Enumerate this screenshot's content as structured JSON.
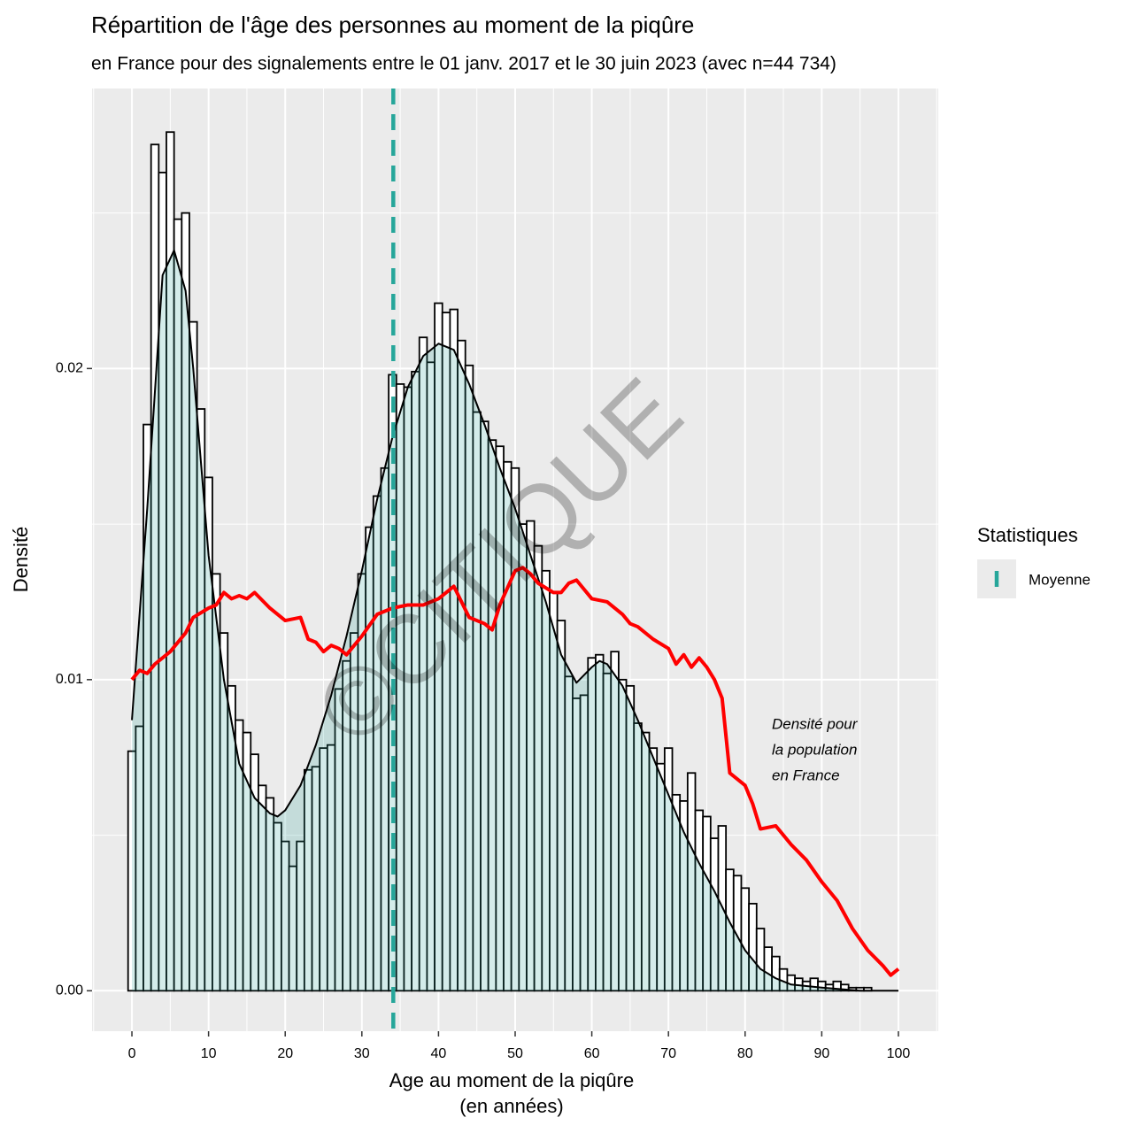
{
  "chart_data": {
    "type": "histogram",
    "title": "Répartition de l'âge des personnes au moment de la piqûre",
    "subtitle": "en France pour des signalements entre le 01 janv. 2017 et le 30 juin 2023 (avec n=44 734)",
    "x_label": [
      "Age au moment de la piqûre",
      "(en années)"
    ],
    "y_label": "Densité",
    "watermark": "©CITIQUE",
    "annotation": {
      "lines": [
        "Densité pour",
        "la population",
        "en France"
      ],
      "color": "#ff0000"
    },
    "legend": {
      "title": "Statistiques",
      "position": "right"
    },
    "bins": [
      -0.5,
      0.5,
      1.5,
      2.5,
      3.5,
      4.5,
      5.5,
      6.5,
      7.5,
      8.5,
      9.5,
      10.5,
      11.5,
      12.5,
      13.5,
      14.5,
      15.5,
      16.5,
      17.5,
      18.5,
      19.5,
      20.5,
      21.5,
      22.5,
      23.5,
      24.5,
      25.5,
      26.5,
      27.5,
      28.5,
      29.5,
      30.5,
      31.5,
      32.5,
      33.5,
      34.5,
      35.5,
      36.5,
      37.5,
      38.5,
      39.5,
      40.5,
      41.5,
      42.5,
      43.5,
      44.5,
      45.5,
      46.5,
      47.5,
      48.5,
      49.5,
      50.5,
      51.5,
      52.5,
      53.5,
      54.5,
      55.5,
      56.5,
      57.5,
      58.5,
      59.5,
      60.5,
      61.5,
      62.5,
      63.5,
      64.5,
      65.5,
      66.5,
      67.5,
      68.5,
      69.5,
      70.5,
      71.5,
      72.5,
      73.5,
      74.5,
      75.5,
      76.5,
      77.5,
      78.5,
      79.5,
      80.5,
      81.5,
      82.5,
      83.5,
      84.5,
      85.5,
      86.5,
      87.5,
      88.5,
      89.5,
      90.5,
      91.5,
      92.5,
      93.5,
      94.5,
      95.5,
      96.5,
      97.5,
      98.5,
      99.5,
      100.5
    ],
    "values": [
      0.0077,
      0.0085,
      0.0182,
      0.0272,
      0.0263,
      0.0276,
      0.0248,
      0.025,
      0.0215,
      0.0187,
      0.0165,
      0.0134,
      0.0115,
      0.0098,
      0.0087,
      0.0083,
      0.0076,
      0.0066,
      0.0062,
      0.0054,
      0.0048,
      0.004,
      0.0048,
      0.0071,
      0.0072,
      0.0078,
      0.0079,
      0.0097,
      0.0106,
      0.0115,
      0.0134,
      0.0149,
      0.0159,
      0.0168,
      0.0198,
      0.0195,
      0.0194,
      0.0199,
      0.021,
      0.0202,
      0.0221,
      0.0218,
      0.0219,
      0.0209,
      0.0201,
      0.0186,
      0.0183,
      0.0177,
      0.0175,
      0.017,
      0.0168,
      0.015,
      0.0151,
      0.0143,
      0.0135,
      0.0128,
      0.0119,
      0.0101,
      0.0094,
      0.0095,
      0.0107,
      0.0108,
      0.0102,
      0.0109,
      0.01,
      0.0098,
      0.0086,
      0.0083,
      0.0078,
      0.0073,
      0.0078,
      0.0063,
      0.0061,
      0.007,
      0.0058,
      0.0056,
      0.0049,
      0.0053,
      0.0039,
      0.0037,
      0.0033,
      0.0028,
      0.002,
      0.0014,
      0.0011,
      0.0007,
      0.0005,
      0.0004,
      0.0003,
      0.0004,
      0.0003,
      0.0002,
      0.0003,
      0.0002,
      0.0001,
      0.0001,
      0.0001,
      0,
      0,
      0,
      0
    ],
    "bar_fill": "#ffffff",
    "bar_stroke": "#000000",
    "lines": [
      {
        "x": [
          0,
          2,
          4,
          5.5,
          7,
          8,
          10,
          12,
          14,
          16,
          18,
          19,
          20,
          22,
          24,
          26,
          28,
          30,
          32,
          34,
          36,
          38,
          40,
          42,
          44,
          46,
          48,
          50,
          52,
          54,
          56,
          58,
          60,
          61,
          62,
          64,
          66,
          68,
          70,
          72,
          74,
          76,
          78,
          80,
          82,
          84,
          86,
          90,
          95,
          100
        ],
        "values": [
          0.0087,
          0.0155,
          0.023,
          0.0238,
          0.0225,
          0.02,
          0.014,
          0.01,
          0.0073,
          0.0062,
          0.0057,
          0.0056,
          0.0058,
          0.0066,
          0.0079,
          0.0095,
          0.0114,
          0.0135,
          0.0158,
          0.0178,
          0.0194,
          0.0204,
          0.0208,
          0.0206,
          0.0195,
          0.0182,
          0.0168,
          0.0155,
          0.014,
          0.0125,
          0.0108,
          0.0099,
          0.0104,
          0.0106,
          0.0105,
          0.0098,
          0.0087,
          0.0075,
          0.0063,
          0.0051,
          0.0041,
          0.0032,
          0.0022,
          0.0013,
          0.0007,
          0.0004,
          0.0002,
          0.0001,
          0,
          0
        ],
        "color": "#000000",
        "fill": "#2aa198"
      },
      {
        "x": [
          0,
          1,
          2,
          3,
          5,
          7,
          8,
          10,
          11,
          12,
          13,
          14,
          15,
          16,
          18,
          20,
          22,
          23,
          24,
          25,
          26,
          27,
          28,
          30,
          32,
          34,
          36,
          38,
          40,
          42,
          44,
          46,
          47,
          48,
          50,
          51,
          52,
          53,
          55,
          56,
          57,
          58,
          59,
          60,
          62,
          64,
          65,
          66,
          68,
          70,
          71,
          72,
          73,
          74,
          75,
          76,
          77,
          78,
          80,
          81,
          82,
          84,
          86,
          88,
          90,
          92,
          94,
          96,
          98,
          99,
          100
        ],
        "values": [
          0.01,
          0.0103,
          0.0102,
          0.0105,
          0.0109,
          0.0115,
          0.012,
          0.0123,
          0.0124,
          0.0128,
          0.0126,
          0.0127,
          0.0126,
          0.0128,
          0.0123,
          0.0119,
          0.012,
          0.0113,
          0.0112,
          0.0109,
          0.0111,
          0.011,
          0.0108,
          0.0114,
          0.0121,
          0.0123,
          0.0124,
          0.0124,
          0.0126,
          0.013,
          0.012,
          0.0118,
          0.0116,
          0.0124,
          0.0135,
          0.0136,
          0.0134,
          0.0131,
          0.0128,
          0.0128,
          0.0131,
          0.0132,
          0.0129,
          0.0126,
          0.0125,
          0.0121,
          0.0118,
          0.0117,
          0.0113,
          0.011,
          0.0105,
          0.0108,
          0.0104,
          0.0107,
          0.0104,
          0.01,
          0.0094,
          0.007,
          0.0066,
          0.006,
          0.0052,
          0.0053,
          0.0047,
          0.0042,
          0.0035,
          0.0029,
          0.002,
          0.0013,
          0.0008,
          0.0005,
          0.0007
        ],
        "color": "#ff0000"
      }
    ],
    "mean_line": {
      "name": "Moyenne",
      "value": 34.1,
      "color": "#26a69a"
    },
    "xlim": [
      -5.2,
      105.2
    ],
    "ylim": [
      -0.0013,
      0.029
    ],
    "xticks": [
      0,
      10,
      20,
      30,
      40,
      50,
      60,
      70,
      80,
      90,
      100
    ],
    "yticks": [
      {
        "value": 0,
        "label": "0.00"
      },
      {
        "value": 0.01,
        "label": "0.01"
      },
      {
        "value": 0.02,
        "label": "0.02"
      }
    ],
    "x_minor_ticks": [
      -5,
      5,
      15,
      25,
      35,
      45,
      55,
      65,
      75,
      85,
      95,
      105
    ],
    "y_minor_ticks": [
      0.005,
      0.015,
      0.025
    ],
    "grid": true
  }
}
